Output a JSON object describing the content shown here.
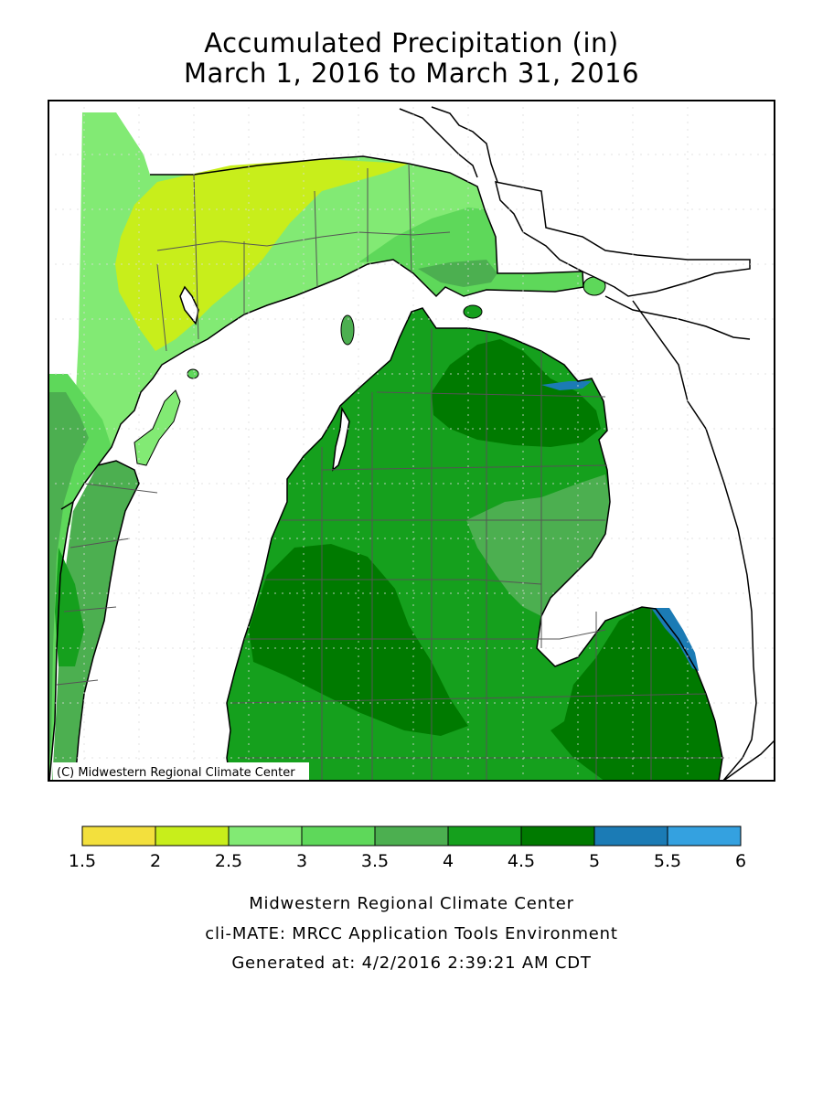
{
  "title": {
    "line1": "Accumulated Precipitation (in)",
    "line2": "March 1, 2016 to March 31, 2016"
  },
  "map": {
    "copyright": "(C) Midwestern Regional Climate Center"
  },
  "legend": {
    "breaks": [
      "1.5",
      "2",
      "2.5",
      "3",
      "3.5",
      "4",
      "4.5",
      "5",
      "5.5",
      "6"
    ],
    "colors": [
      "#f3e03d",
      "#c8ee1b",
      "#82ea74",
      "#5ed85a",
      "#4caf50",
      "#15a01d",
      "#007a00",
      "#1b7bb5",
      "#34a1e0"
    ]
  },
  "footer": {
    "line1": "Midwestern Regional Climate Center",
    "line2": "cli-MATE: MRCC Application Tools Environment",
    "line3": "Generated at: 4/2/2016 2:39:21 AM CDT"
  }
}
